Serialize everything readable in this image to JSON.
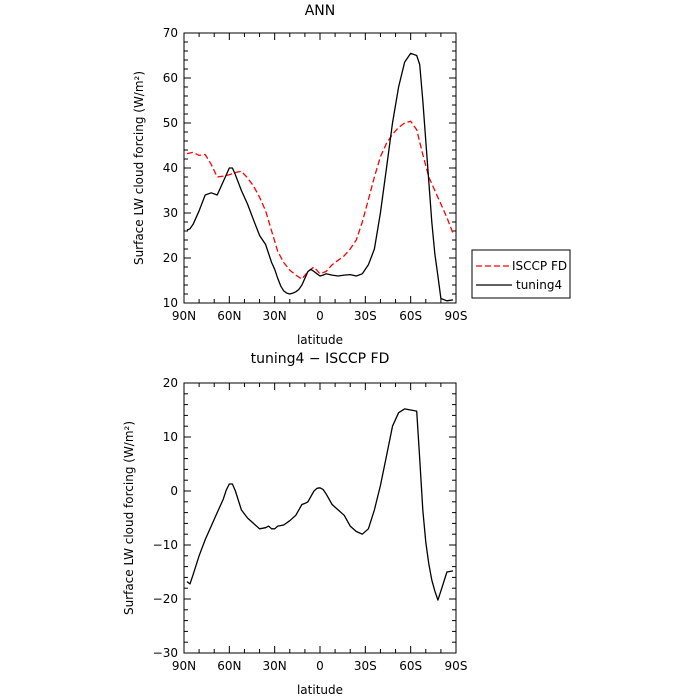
{
  "chart_data": [
    {
      "type": "line",
      "title": "ANN",
      "xlabel": "latitude",
      "ylabel": "Surface LW cloud forcing (W/m²)",
      "xlim": [
        90,
        -90
      ],
      "ylim": [
        10,
        70
      ],
      "x_ticks": [
        90,
        60,
        30,
        0,
        -30,
        -60,
        -90
      ],
      "x_tick_labels": [
        "90N",
        "60N",
        "30N",
        "0",
        "30S",
        "60S",
        "90S"
      ],
      "y_ticks": [
        10,
        20,
        30,
        40,
        50,
        60,
        70
      ],
      "y_tick_labels": [
        "10",
        "20",
        "30",
        "40",
        "50",
        "60",
        "70"
      ],
      "grid": false,
      "legend": "outside-right",
      "series": [
        {
          "name": "ISCCP FD",
          "color": "#ff0000",
          "dash": "dashed",
          "x": [
            88,
            84,
            80,
            76,
            72,
            68,
            64,
            60,
            56,
            52,
            48,
            44,
            40,
            36,
            32,
            28,
            24,
            20,
            16,
            12,
            8,
            4,
            0,
            -4,
            -8,
            -12,
            -16,
            -20,
            -24,
            -28,
            -32,
            -36,
            -40,
            -44,
            -48,
            -52,
            -56,
            -60,
            -64,
            -68,
            -72,
            -76,
            -80,
            -84,
            -88
          ],
          "values": [
            43.2,
            43.5,
            42.8,
            43.0,
            40.8,
            38.0,
            38.2,
            38.5,
            39.0,
            39.3,
            37.8,
            36.0,
            33.5,
            30.5,
            26.0,
            21.5,
            19.0,
            17.3,
            16.2,
            15.3,
            17.0,
            18.0,
            16.5,
            17.0,
            18.5,
            19.5,
            20.5,
            22.0,
            24.0,
            28.0,
            33.0,
            38.0,
            42.5,
            45.5,
            47.5,
            49.0,
            50.0,
            50.4,
            48.5,
            43.0,
            38.0,
            35.0,
            32.0,
            29.0,
            25.5
          ]
        },
        {
          "name": "tuning4",
          "color": "#000000",
          "dash": "solid",
          "x": [
            88,
            86,
            84,
            80,
            76,
            72,
            68,
            64,
            60,
            58,
            56,
            52,
            48,
            44,
            40,
            36,
            34,
            32,
            30,
            28,
            26,
            24,
            22,
            20,
            18,
            16,
            14,
            12,
            10,
            8,
            6,
            4,
            2,
            0,
            -2,
            -4,
            -8,
            -12,
            -16,
            -20,
            -24,
            -28,
            -32,
            -36,
            -40,
            -44,
            -48,
            -52,
            -56,
            -60,
            -64,
            -66,
            -68,
            -70,
            -72,
            -74,
            -76,
            -78,
            -80,
            -84,
            -88
          ],
          "values": [
            26.2,
            26.5,
            27.5,
            30.5,
            34.0,
            34.5,
            34.0,
            37.0,
            40.0,
            40.0,
            38.5,
            35.0,
            32.0,
            28.5,
            25.0,
            23.0,
            21.0,
            19.0,
            17.5,
            15.5,
            13.8,
            12.7,
            12.2,
            12.0,
            12.2,
            12.5,
            13.0,
            14.0,
            15.5,
            17.0,
            17.5,
            17.0,
            16.5,
            16.0,
            16.2,
            16.5,
            16.2,
            16.0,
            16.2,
            16.3,
            16.0,
            16.5,
            18.5,
            22.0,
            30.0,
            40.0,
            50.0,
            58.0,
            63.5,
            65.5,
            65.0,
            63.0,
            55.0,
            46.0,
            37.0,
            28.0,
            21.0,
            16.0,
            11.0,
            10.5,
            10.7
          ]
        }
      ]
    },
    {
      "type": "line",
      "title": "tuning4 − ISCCP FD",
      "xlabel": "latitude",
      "ylabel": "Surface LW cloud forcing (W/m²)",
      "xlim": [
        90,
        -90
      ],
      "ylim": [
        -30,
        20
      ],
      "x_ticks": [
        90,
        60,
        30,
        0,
        -30,
        -60,
        -90
      ],
      "x_tick_labels": [
        "90N",
        "60N",
        "30N",
        "0",
        "30S",
        "60S",
        "90S"
      ],
      "y_ticks": [
        -30,
        -20,
        -10,
        0,
        10,
        20
      ],
      "y_tick_labels": [
        "−30",
        "−20",
        "−10",
        "0",
        "10",
        "20"
      ],
      "grid": false,
      "series": [
        {
          "color": "#000000",
          "dash": "solid",
          "x": [
            88,
            86,
            84,
            80,
            76,
            72,
            68,
            64,
            62,
            60,
            58,
            56,
            52,
            48,
            44,
            40,
            36,
            34,
            32,
            30,
            28,
            24,
            20,
            16,
            12,
            10,
            8,
            6,
            4,
            2,
            0,
            -2,
            -4,
            -8,
            -12,
            -16,
            -20,
            -24,
            -28,
            -32,
            -36,
            -40,
            -44,
            -48,
            -52,
            -56,
            -60,
            -64,
            -66,
            -68,
            -70,
            -72,
            -74,
            -76,
            -78,
            -80,
            -84,
            -88
          ],
          "values": [
            -16.8,
            -17.2,
            -15.5,
            -12.0,
            -9.0,
            -6.5,
            -4.0,
            -1.5,
            0.2,
            1.3,
            1.3,
            0.0,
            -3.5,
            -5.0,
            -6.0,
            -7.0,
            -6.8,
            -6.5,
            -7.0,
            -7.0,
            -6.5,
            -6.3,
            -5.5,
            -4.5,
            -2.5,
            -2.3,
            -2.0,
            -1.0,
            0.0,
            0.5,
            0.6,
            0.3,
            -0.5,
            -2.5,
            -3.5,
            -4.5,
            -6.5,
            -7.5,
            -8.0,
            -7.0,
            -3.5,
            1.0,
            6.5,
            12.0,
            14.5,
            15.2,
            15.0,
            14.8,
            6.0,
            -3.5,
            -9.5,
            -13.5,
            -16.5,
            -18.5,
            -20.2,
            -18.5,
            -15.0,
            -14.8
          ]
        }
      ]
    }
  ]
}
